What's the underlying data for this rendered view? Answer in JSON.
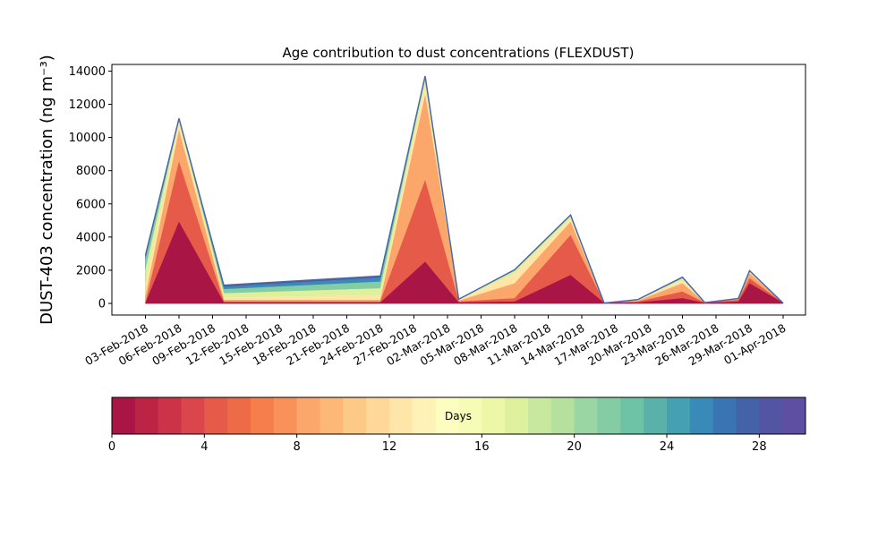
{
  "chart_data": {
    "type": "area",
    "stacked": true,
    "title": "Age contribution to dust concentrations (FLEXDUST)",
    "ylabel": "DUST-403 concentration (ng m⁻³)",
    "xlabel": "",
    "ylim": [
      -700,
      14400
    ],
    "yticks": [
      0,
      2000,
      4000,
      6000,
      8000,
      10000,
      12000,
      14000
    ],
    "ytick_labels": [
      "0",
      "2000",
      "4000",
      "6000",
      "8000",
      "10000",
      "12000",
      "14000"
    ],
    "xlim": [
      "2018-01-31",
      "2018-04-03"
    ],
    "xticks": [
      "2018-02-03",
      "2018-02-06",
      "2018-02-09",
      "2018-02-12",
      "2018-02-15",
      "2018-02-18",
      "2018-02-21",
      "2018-02-24",
      "2018-02-27",
      "2018-03-02",
      "2018-03-05",
      "2018-03-08",
      "2018-03-11",
      "2018-03-14",
      "2018-03-17",
      "2018-03-20",
      "2018-03-23",
      "2018-03-26",
      "2018-03-29",
      "2018-04-01"
    ],
    "xtick_labels": [
      "03-Feb-2018",
      "06-Feb-2018",
      "09-Feb-2018",
      "12-Feb-2018",
      "15-Feb-2018",
      "18-Feb-2018",
      "21-Feb-2018",
      "24-Feb-2018",
      "27-Feb-2018",
      "02-Mar-2018",
      "05-Mar-2018",
      "08-Mar-2018",
      "11-Mar-2018",
      "14-Mar-2018",
      "17-Mar-2018",
      "20-Mar-2018",
      "23-Mar-2018",
      "26-Mar-2018",
      "29-Mar-2018",
      "01-Apr-2018"
    ],
    "dates": [
      "2018-02-03",
      "2018-02-06",
      "2018-02-10",
      "2018-02-24",
      "2018-02-28",
      "2018-03-03",
      "2018-03-08",
      "2018-03-13",
      "2018-03-16",
      "2018-03-19",
      "2018-03-23",
      "2018-03-25",
      "2018-03-28",
      "2018-03-29",
      "2018-04-01"
    ],
    "band_upper_values": [
      [
        0,
        4900,
        50,
        50,
        2500,
        50,
        100,
        1700,
        20,
        50,
        300,
        20,
        100,
        1200,
        20
      ],
      [
        0,
        8500,
        100,
        100,
        7400,
        100,
        300,
        4100,
        20,
        100,
        700,
        30,
        200,
        1500,
        20
      ],
      [
        400,
        10400,
        200,
        200,
        12500,
        150,
        1200,
        4900,
        20,
        150,
        1200,
        40,
        250,
        1800,
        20
      ],
      [
        1200,
        10900,
        350,
        500,
        13200,
        200,
        1800,
        5100,
        20,
        200,
        1400,
        50,
        280,
        1900,
        20
      ],
      [
        2000,
        11000,
        600,
        900,
        13500,
        230,
        1950,
        5250,
        20,
        220,
        1500,
        50,
        290,
        1950,
        20
      ],
      [
        2600,
        11050,
        850,
        1300,
        13600,
        240,
        2000,
        5300,
        20,
        230,
        1550,
        50,
        300,
        1960,
        20
      ],
      [
        2850,
        11100,
        1000,
        1550,
        13650,
        245,
        2020,
        5320,
        20,
        230,
        1570,
        50,
        300,
        1970,
        20
      ],
      [
        2900,
        11150,
        1100,
        1650,
        13700,
        250,
        2030,
        5330,
        20,
        230,
        1580,
        50,
        300,
        1970,
        20
      ]
    ],
    "band_ages": [
      "0-1",
      "1-3",
      "3-5",
      "5-8",
      "8-11",
      "11-15",
      "15-20",
      "20-30"
    ],
    "colorbar": {
      "label": "Days",
      "range": [
        0,
        30
      ],
      "ticks": [
        0,
        4,
        8,
        12,
        16,
        20,
        24,
        28
      ],
      "tick_labels": [
        "0",
        "4",
        "8",
        "12",
        "16",
        "20",
        "24",
        "28"
      ],
      "colors": [
        "#a91645",
        "#bc2446",
        "#cc3348",
        "#db464c",
        "#e55a48",
        "#ed6b46",
        "#f57e4b",
        "#f8925a",
        "#fba66b",
        "#fdb878",
        "#fdc987",
        "#fed898",
        "#fee6a9",
        "#fff2b6",
        "#fefdc0",
        "#f6fbb5",
        "#ecf7a7",
        "#ddf09c",
        "#c9e89f",
        "#b5e09e",
        "#9ad6a3",
        "#83cca4",
        "#6ec2a5",
        "#59b1a9",
        "#45a0b1",
        "#3a8ab9",
        "#3a74b2",
        "#4462a8",
        "#5354a3",
        "#5e4fa2"
      ]
    },
    "grid": false,
    "legend": "colorbar-below"
  }
}
